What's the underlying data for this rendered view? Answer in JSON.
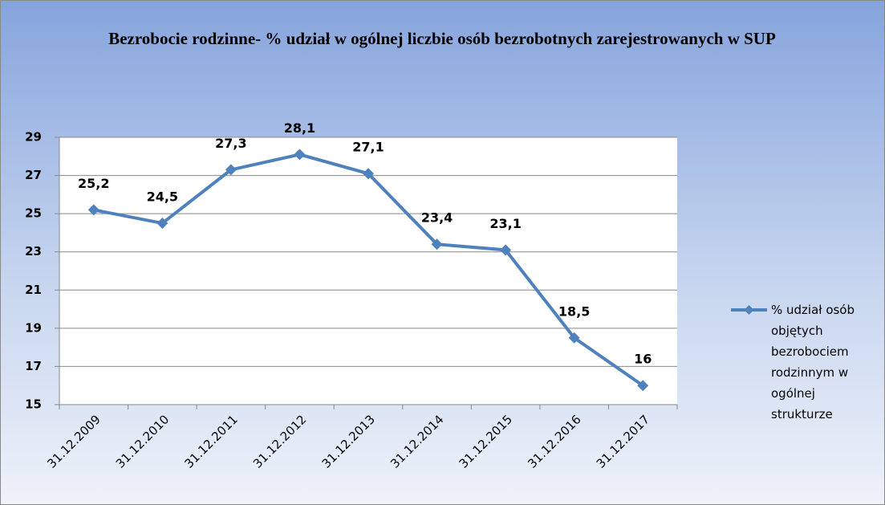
{
  "chart_data": {
    "type": "line",
    "title": "Bezrobocie rodzinne- % udział w ogólnej liczbie osób bezrobotnych zarejestrowanych w SUP",
    "categories": [
      "31.12.2009",
      "31.12.2010",
      "31.12.2011",
      "31.12.2012",
      "31.12.2013",
      "31.12.2014",
      "31.12.2015",
      "31.12.2016",
      "31.12.2017"
    ],
    "series": [
      {
        "name": "% udział osób objętych bezrobociem rodzinnym w ogólnej strukturze",
        "color": "#4f81bd",
        "values": [
          25.2,
          24.5,
          27.3,
          28.1,
          27.1,
          23.4,
          23.1,
          18.5,
          16
        ],
        "value_labels": [
          "25,2",
          "24,5",
          "27,3",
          "28,1",
          "27,1",
          "23,4",
          "23,1",
          "18,5",
          "16"
        ]
      }
    ],
    "ylim": [
      15,
      29
    ],
    "yticks": [
      15,
      17,
      19,
      21,
      23,
      25,
      27,
      29
    ],
    "grid": true,
    "legend": "right"
  }
}
